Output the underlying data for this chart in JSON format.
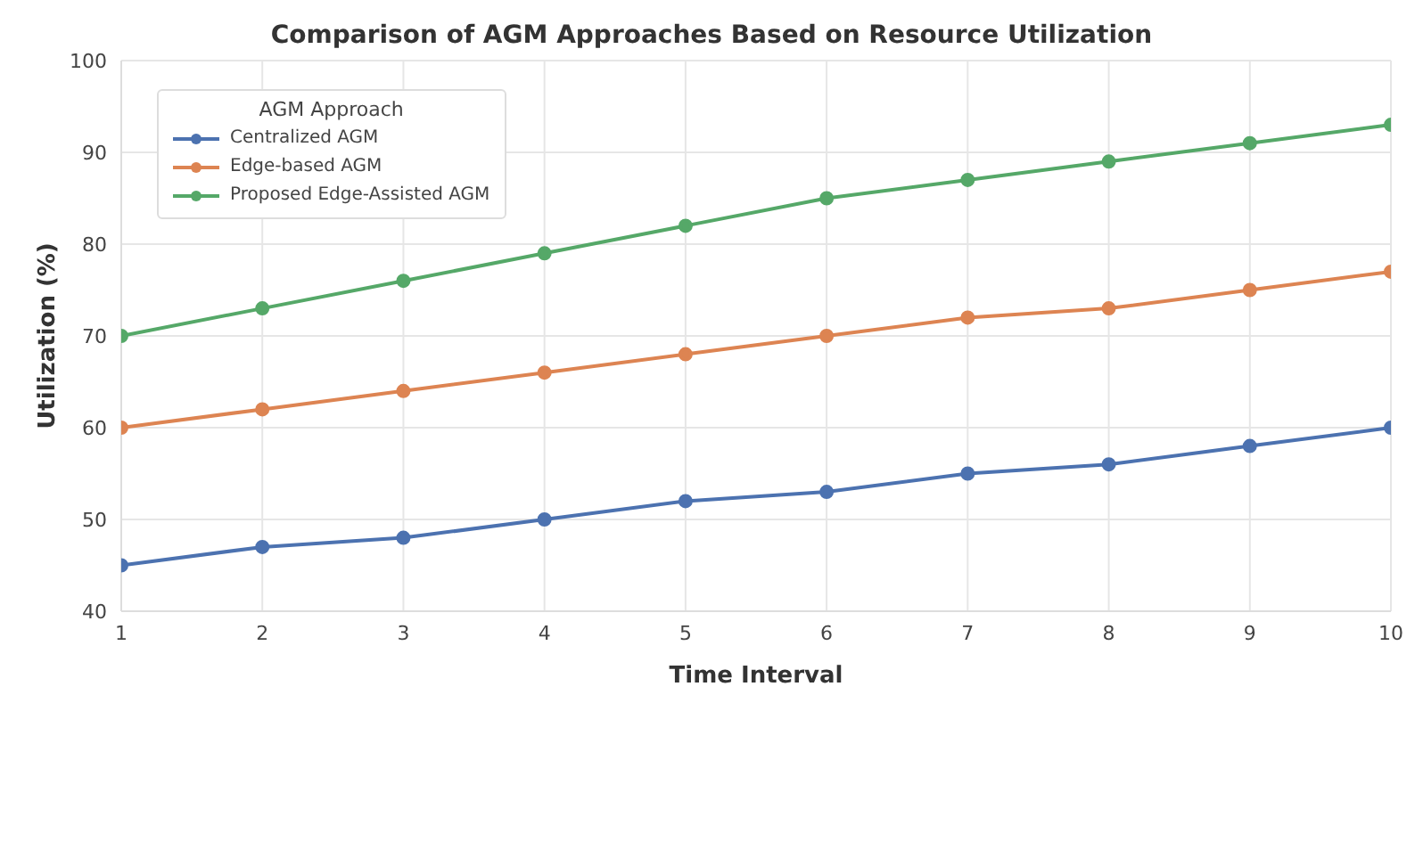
{
  "chart_data": {
    "type": "line",
    "title": "Comparison of AGM Approaches Based on Resource Utilization",
    "xlabel": "Time Interval",
    "ylabel": "Utilization (%)",
    "legend_title": "AGM Approach",
    "x": [
      1,
      2,
      3,
      4,
      5,
      6,
      7,
      8,
      9,
      10
    ],
    "series": [
      {
        "name": "Centralized AGM",
        "color": "#4c72b0",
        "values": [
          45,
          47,
          48,
          50,
          52,
          53,
          55,
          56,
          58,
          60
        ]
      },
      {
        "name": "Edge-based AGM",
        "color": "#dd8452",
        "values": [
          60,
          62,
          64,
          66,
          68,
          70,
          72,
          73,
          75,
          77
        ]
      },
      {
        "name": "Proposed Edge-Assisted AGM",
        "color": "#55a868",
        "values": [
          70,
          73,
          76,
          79,
          82,
          85,
          87,
          89,
          91,
          93
        ]
      }
    ],
    "xlim": [
      1,
      10
    ],
    "xticks": [
      1,
      2,
      3,
      4,
      5,
      6,
      7,
      8,
      9,
      10
    ],
    "ylim": [
      40,
      100
    ],
    "yticks": [
      40,
      50,
      60,
      70,
      80,
      90,
      100
    ],
    "grid": true,
    "legend": "top left",
    "marker": "circle",
    "line_style": "solid"
  }
}
